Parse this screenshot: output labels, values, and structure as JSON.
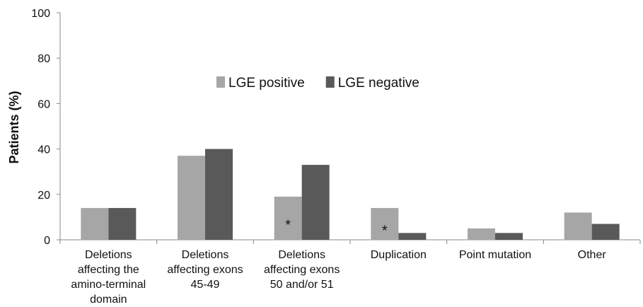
{
  "chart_data": {
    "type": "bar",
    "y_label": "Patients  (%)",
    "categories": [
      "Deletions\naffecting the\namino-terminal\ndomain",
      "Deletions\naffecting exons\n45-49",
      "Deletions\naffecting exons\n50 and/or 51",
      "Duplication",
      "Point mutation",
      "Other"
    ],
    "series": [
      {
        "name": "LGE positive",
        "color": "#a6a6a6",
        "values": [
          14,
          37,
          19,
          14,
          5,
          12
        ]
      },
      {
        "name": "LGE negative",
        "color": "#595959",
        "values": [
          14,
          40,
          33,
          3,
          3,
          7
        ]
      }
    ],
    "annotations": [
      {
        "text": "*",
        "category": 2,
        "series": 0
      },
      {
        "text": "*",
        "category": 3,
        "series": 0
      }
    ],
    "ylim": [
      0,
      100
    ],
    "yticks": [
      0,
      20,
      40,
      60,
      80,
      100
    ],
    "grid": false,
    "legend": "top"
  }
}
